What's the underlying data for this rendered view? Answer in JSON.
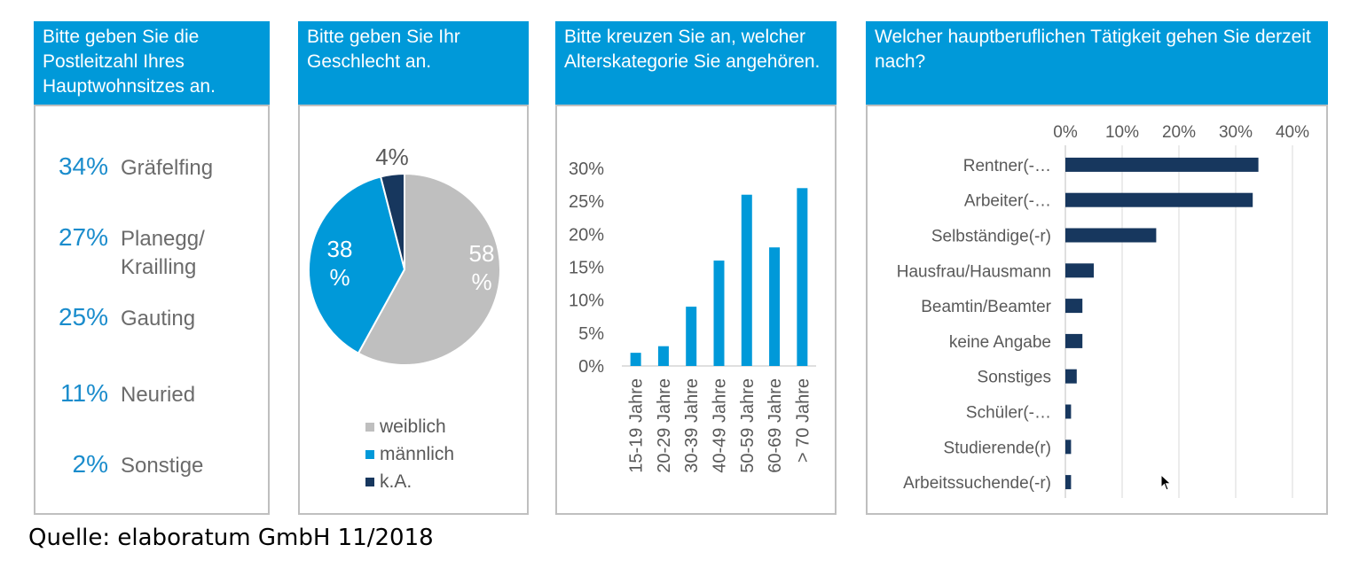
{
  "panels": {
    "zip": {
      "title": "Bitte geben Sie die Postleitzahl Ihres Hauptwohnsitzes an.",
      "items": [
        {
          "pct": "34%",
          "name": "Gräfelfing"
        },
        {
          "pct": "27%",
          "name": "Planegg/ Krailling"
        },
        {
          "pct": "25%",
          "name": "Gauting"
        },
        {
          "pct": "11%",
          "name": "Neuried"
        },
        {
          "pct": "2%",
          "name": "Sonstige"
        }
      ]
    },
    "gender": {
      "title": "Bitte geben Sie Ihr Geschlecht an."
    },
    "age": {
      "title": "Bitte kreuzen Sie an, welcher Alterskategorie Sie angehören."
    },
    "job": {
      "title": "Welcher hauptberuflichen Tätigkeit gehen Sie derzeit nach?"
    }
  },
  "source": "Quelle: elaboratum GmbH 11/2018",
  "colors": {
    "accent": "#0099d9",
    "grey": "#bfbfbf",
    "navy": "#17375e"
  },
  "chart_data": [
    {
      "type": "pie",
      "categories": [
        "weiblich",
        "männlich",
        "k.A."
      ],
      "values": [
        58,
        38,
        4
      ],
      "data_labels": [
        "58 %",
        "38 %",
        "4%"
      ],
      "colors": [
        "#bfbfbf",
        "#0099d9",
        "#17375e"
      ],
      "legend": "bottom"
    },
    {
      "type": "bar",
      "categories": [
        "15-19 Jahre",
        "20-29 Jahre",
        "30-39 Jahre",
        "40-49 Jahre",
        "50-59 Jahre",
        "60-69 Jahre",
        "> 70 Jahre"
      ],
      "values": [
        2,
        3,
        9,
        16,
        26,
        18,
        27
      ],
      "ylim": [
        0,
        30
      ],
      "yticks": [
        "0%",
        "5%",
        "10%",
        "15%",
        "20%",
        "25%",
        "30%"
      ],
      "grid": false,
      "color": "#0099d9"
    },
    {
      "type": "bar",
      "orientation": "horizontal",
      "categories": [
        "Rentner(-…",
        "Arbeiter(-…",
        "Selbständige(-r)",
        "Hausfrau/Hausmann",
        "Beamtin/Beamter",
        "keine Angabe",
        "Sonstiges",
        "Schüler(-…",
        "Studierende(r)",
        "Arbeitssuchende(-r)"
      ],
      "values": [
        34,
        33,
        16,
        5,
        3,
        3,
        2,
        1,
        1,
        1
      ],
      "xlim": [
        0,
        40
      ],
      "xticks": [
        "0%",
        "10%",
        "20%",
        "30%",
        "40%"
      ],
      "grid": true,
      "color": "#17375e"
    }
  ]
}
